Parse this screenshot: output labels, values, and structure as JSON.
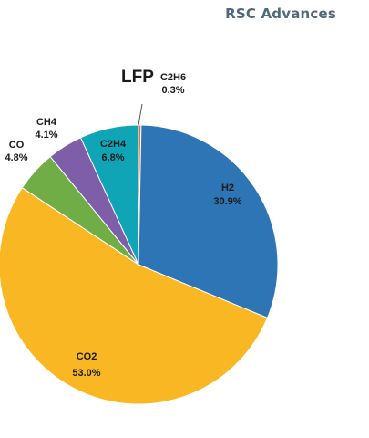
{
  "header": {
    "journal": "RSC Advances"
  },
  "chart_data": {
    "type": "pie",
    "title": "LFP",
    "slices": [
      {
        "label": "C2H6",
        "value": 0.3,
        "value_label": "0.3%",
        "color": "#c87a3b"
      },
      {
        "label": "H2",
        "value": 30.9,
        "value_label": "30.9%",
        "color": "#2e75b6"
      },
      {
        "label": "CO2",
        "value": 53.0,
        "value_label": "53.0%",
        "color": "#f9b823"
      },
      {
        "label": "CO",
        "value": 4.8,
        "value_label": "4.8%",
        "color": "#70ad47"
      },
      {
        "label": "CH4",
        "value": 4.1,
        "value_label": "4.1%",
        "color": "#7e5ea8"
      },
      {
        "label": "C2H4",
        "value": 6.8,
        "value_label": "6.8%",
        "color": "#0fa5b6"
      }
    ],
    "start_angle": "12 o'clock",
    "direction": "clockwise",
    "legend": "none"
  }
}
